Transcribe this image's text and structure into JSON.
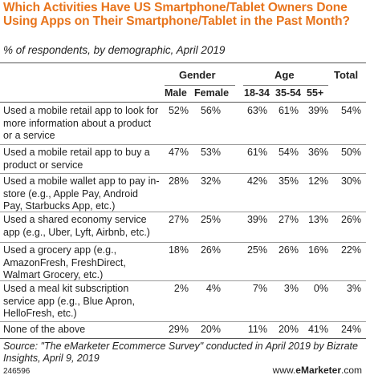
{
  "chart_data": {
    "type": "table",
    "title": "Which Activities Have US Smartphone/Tablet Owners Done Using Apps on Their Smartphone/Tablet in the Past Month?",
    "subtitle": "% of respondents, by demographic, April 2019",
    "column_groups": [
      {
        "name": "Gender",
        "columns": [
          "Male",
          "Female"
        ]
      },
      {
        "name": "Age",
        "columns": [
          "18-34",
          "35-54",
          "55+"
        ]
      },
      {
        "name": "Total",
        "columns": [
          "Total"
        ]
      }
    ],
    "columns": [
      "Male",
      "Female",
      "18-34",
      "35-54",
      "55+",
      "Total"
    ],
    "rows": [
      {
        "label": "Used a mobile retail app to look for more information about a product or a service",
        "values": [
          "52%",
          "56%",
          "63%",
          "61%",
          "39%",
          "54%"
        ]
      },
      {
        "label": "Used a mobile retail app to buy a product or service",
        "values": [
          "47%",
          "53%",
          "61%",
          "54%",
          "36%",
          "50%"
        ]
      },
      {
        "label": "Used a mobile wallet app to pay in-store (e.g., Apple Pay, Android Pay, Starbucks App, etc.)",
        "values": [
          "28%",
          "32%",
          "42%",
          "35%",
          "12%",
          "30%"
        ]
      },
      {
        "label": "Used a shared economy service app (e.g., Uber, Lyft, Airbnb, etc.)",
        "values": [
          "27%",
          "25%",
          "39%",
          "27%",
          "13%",
          "26%"
        ]
      },
      {
        "label": "Used a grocery app (e.g., AmazonFresh, FreshDirect, Walmart Grocery, etc.)",
        "values": [
          "18%",
          "26%",
          "25%",
          "26%",
          "16%",
          "22%"
        ]
      },
      {
        "label": "Used a meal kit subscription service app (e.g., Blue Apron, HelloFresh, etc.)",
        "values": [
          "2%",
          "4%",
          "7%",
          "3%",
          "0%",
          "3%"
        ]
      },
      {
        "label": "None of the above",
        "values": [
          "29%",
          "20%",
          "11%",
          "20%",
          "41%",
          "24%"
        ]
      }
    ],
    "source": "Source: \"The eMarketer Ecommerce Survey\" conducted in April 2019 by Bizrate Insights, April 9, 2019",
    "chart_id": "246596",
    "brand": "www.eMarketer.com"
  }
}
